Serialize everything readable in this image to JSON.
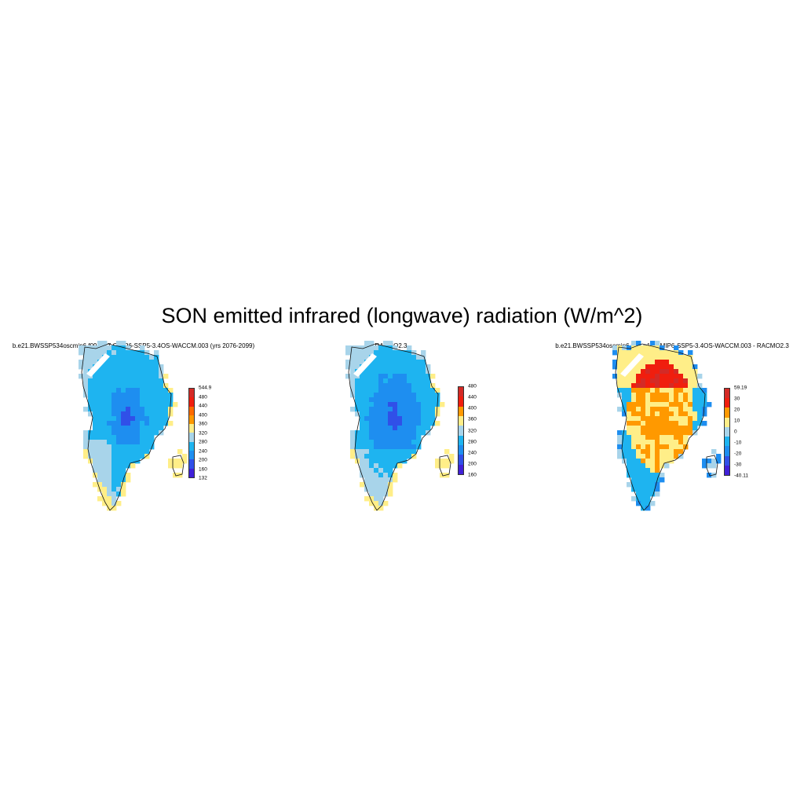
{
  "figure_title": "SON emitted infrared (longwave) radiation (W/m^2)",
  "panels": [
    {
      "title": "b.e21.BWSSP534oscmip6.f09_g17.CMIP6-SSP5-3.4OS-WACCM.003 (yrs 2076-2099)",
      "field": "model",
      "colorbar": {
        "labels": [
          "544.9",
          "480",
          "440",
          "400",
          "360",
          "320",
          "280",
          "240",
          "200",
          "160",
          "132"
        ],
        "colors": [
          "#d42a26",
          "#f01e0e",
          "#ff6a00",
          "#ff9900",
          "#ffee88",
          "#a8d4ea",
          "#1eb4f0",
          "#1e8ef0",
          "#3050e8",
          "#4020d8"
        ]
      }
    },
    {
      "title": "RACMO2.3",
      "field": "obs",
      "colorbar": {
        "labels": [
          "480",
          "440",
          "400",
          "360",
          "320",
          "280",
          "240",
          "200",
          "160"
        ],
        "colors": [
          "#d42a26",
          "#f01e0e",
          "#ff9900",
          "#ffee88",
          "#a8d4ea",
          "#1eb4f0",
          "#1e8ef0",
          "#3050e8",
          "#4020d8"
        ]
      }
    },
    {
      "title": "b.e21.BWSSP534oscmip6.f09_g17.CMIP6-SSP5-3.4OS-WACCM.003 - RACMO2.3",
      "field": "diff",
      "colorbar": {
        "labels": [
          "59.19",
          "30",
          "20",
          "10",
          "0",
          "-10",
          "-20",
          "-30",
          "-40.11"
        ],
        "colors": [
          "#d42a26",
          "#f01e0e",
          "#ff9900",
          "#ffee88",
          "#a8d4ea",
          "#1eb4f0",
          "#1e8ef0",
          "#3050e8",
          "#4020d8"
        ]
      }
    }
  ]
}
